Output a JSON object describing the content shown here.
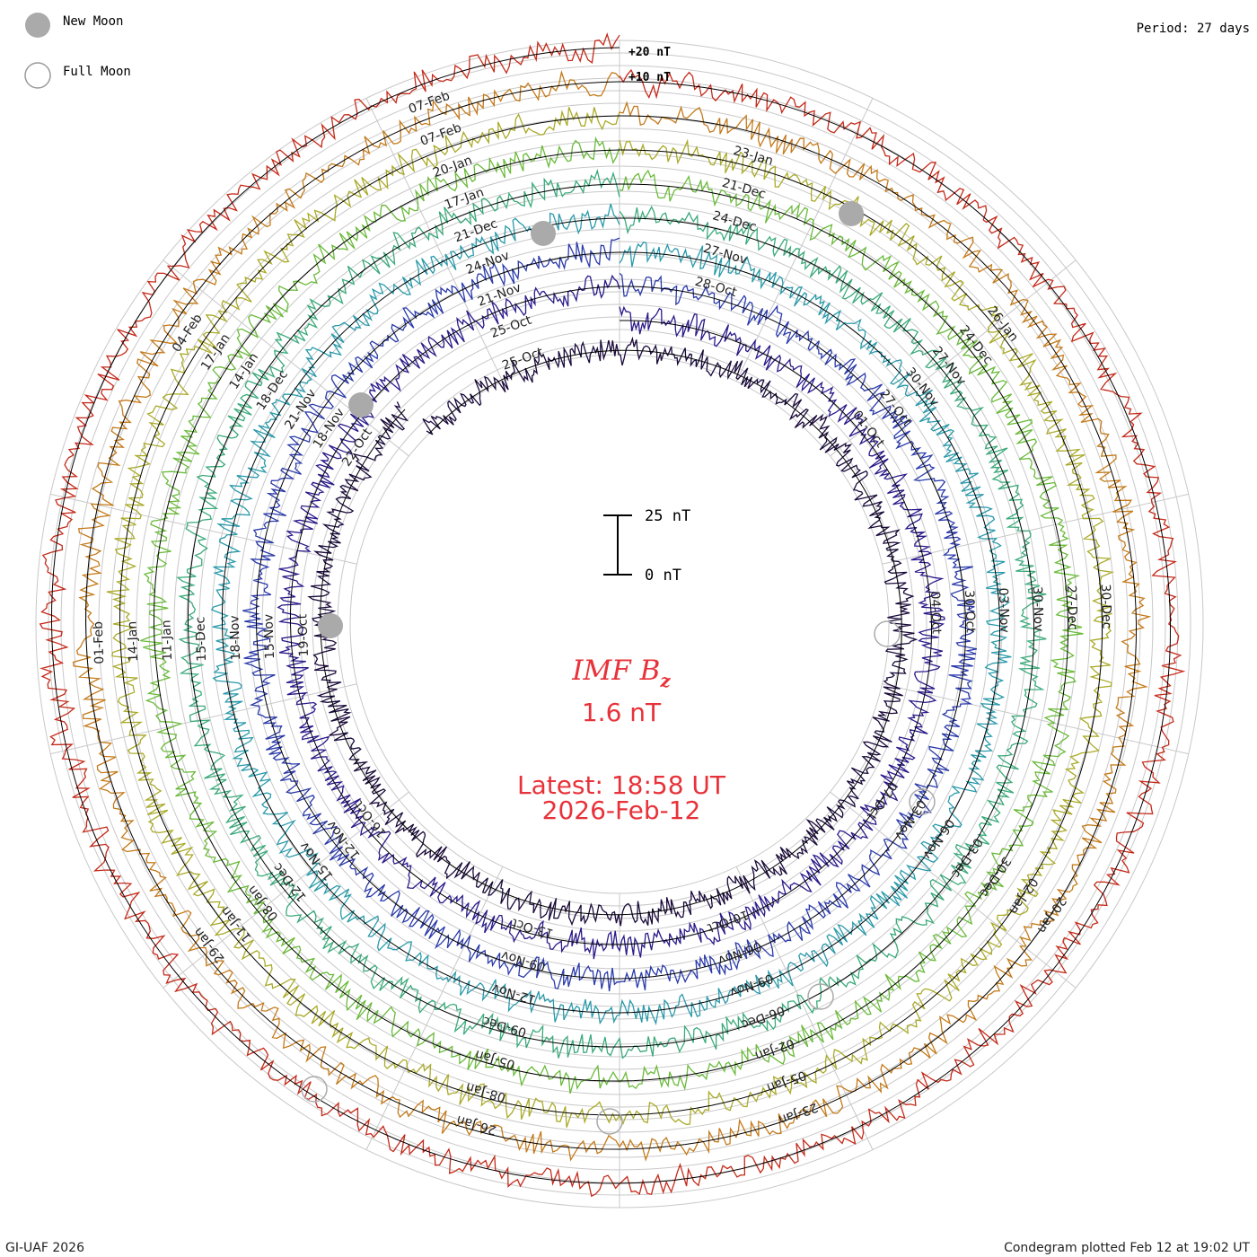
{
  "legend": {
    "new_moon": "New Moon",
    "full_moon": "Full Moon"
  },
  "period_label": "Period: 27 days",
  "credit": "GI-UAF 2026",
  "plotted": "Condegram plotted Feb 12 at 19:02 UT",
  "center": {
    "parameter": "IMF B",
    "parameter_subscript": "z",
    "value": "1.6 nT",
    "latest": "Latest: 18:58 UT",
    "date": "2026-Feb-12"
  },
  "scale_bar": {
    "top_label": "25 nT",
    "bottom_label": "0 nT"
  },
  "chart_data": {
    "type": "line",
    "subtype": "condegram-spiral",
    "quantity": "IMF Bz",
    "units": "nT",
    "period_days": 27,
    "ring_offsets_label": [
      "+20 nT",
      "+10 nT"
    ],
    "latest_value": 1.6,
    "series": [
      {
        "rotation": 1,
        "color": "#1a0a3a",
        "date_labels": [
          "25-Oct"
        ]
      },
      {
        "rotation": 2,
        "color": "#2a1a8a",
        "date_labels": [
          "25-Oct",
          "22-Oct",
          "19-Oct",
          "16-Oct",
          "13-Oct",
          "10-Oct",
          "07-Oct",
          "04-Oct",
          "01-Oct"
        ]
      },
      {
        "rotation": 3,
        "color": "#2a3aaa",
        "date_labels": [
          "21-Nov",
          "18-Nov",
          "15-Nov",
          "12-Nov",
          "09-Nov",
          "06-Nov",
          "03-Nov",
          "30-Oct",
          "27-Oct",
          "28-Oct"
        ]
      },
      {
        "rotation": 4,
        "color": "#2a9aaa",
        "date_labels": [
          "24-Nov",
          "21-Nov",
          "18-Nov",
          "15-Nov",
          "12-Nov",
          "09-Nov",
          "06-Nov",
          "03-Nov",
          "30-Nov",
          "27-Nov"
        ]
      },
      {
        "rotation": 5,
        "color": "#3aaa7a",
        "date_labels": [
          "21-Dec",
          "18-Dec",
          "15-Dec",
          "12-Dec",
          "09-Dec",
          "06-Dec",
          "03-Dec",
          "30-Nov",
          "27-Nov",
          "24-Dec"
        ]
      },
      {
        "rotation": 6,
        "color": "#6aba3a",
        "date_labels": [
          "17-Jan",
          "14-Jan",
          "11-Jan",
          "08-Jan",
          "05-Jan",
          "02-Jan",
          "30-Dec",
          "27-Dec",
          "24-Dec",
          "21-Dec"
        ]
      },
      {
        "rotation": 7,
        "color": "#aaaa2a",
        "date_labels": [
          "20-Jan",
          "17-Jan",
          "14-Jan",
          "11-Jan",
          "08-Jan",
          "05-Jan",
          "02-Jan",
          "30-Dec",
          "26-Jan",
          "23-Jan"
        ]
      },
      {
        "rotation": 8,
        "color": "#c47a1a",
        "date_labels": [
          "07-Feb",
          "04-Feb",
          "01-Feb",
          "29-Jan",
          "26-Jan",
          "23-Jan",
          "20-Jan"
        ]
      },
      {
        "rotation": 9,
        "color": "#c42a1a",
        "date_labels": [
          "07-Feb"
        ]
      }
    ],
    "moon_markers": {
      "new_moon_color": "#aaaaaa",
      "full_moon_color": "#aaaaaa"
    }
  }
}
